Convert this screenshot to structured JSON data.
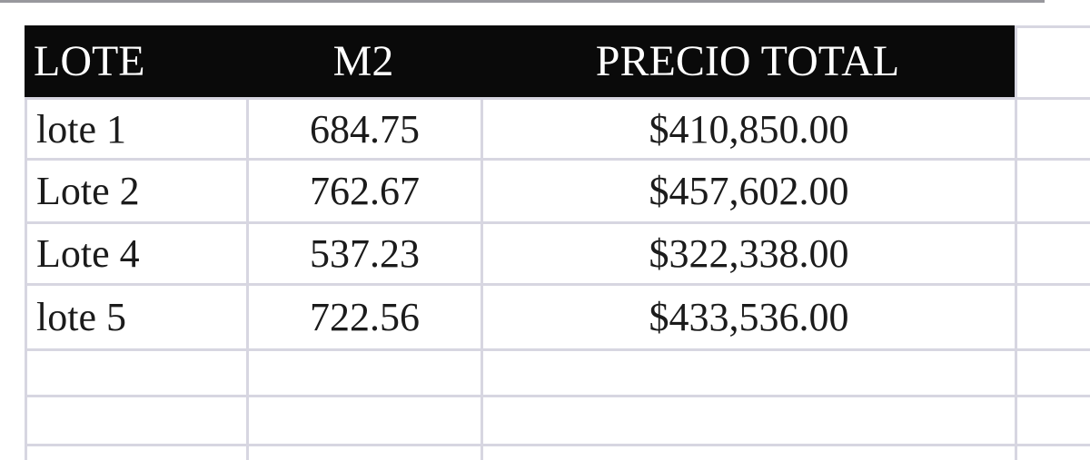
{
  "table": {
    "headers": [
      "LOTE",
      "M2",
      "PRECIO TOTAL"
    ],
    "rows": [
      {
        "lote": "lote 1",
        "m2": "684.75",
        "precio": "$410,850.00"
      },
      {
        "lote": "Lote 2",
        "m2": "762.67",
        "precio": "$457,602.00"
      },
      {
        "lote": "Lote 4",
        "m2": "537.23",
        "precio": "$322,338.00"
      },
      {
        "lote": "lote 5",
        "m2": "722.56",
        "precio": "$433,536.00"
      }
    ],
    "empty_row_count": 3
  },
  "colors": {
    "header_bg": "#0a0a0a",
    "header_text": "#ffffff",
    "gridline": "#d7d6e1",
    "cell_text": "#1b1b1b",
    "top_divider": "#98989d"
  }
}
